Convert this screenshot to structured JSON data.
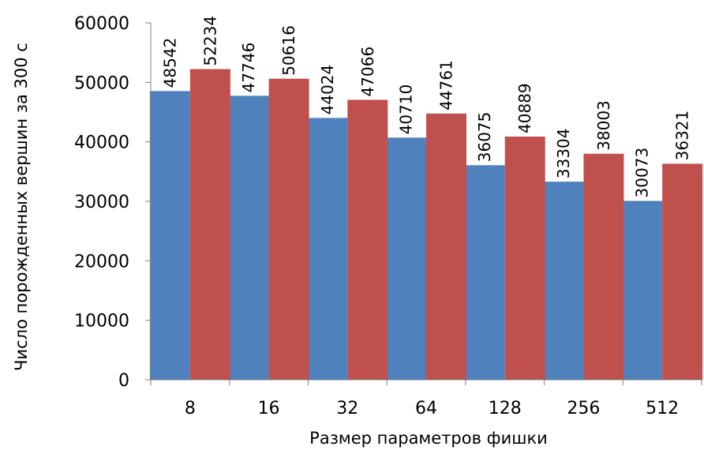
{
  "chart_data": {
    "type": "bar",
    "categories": [
      "8",
      "16",
      "32",
      "64",
      "128",
      "256",
      "512"
    ],
    "series": [
      {
        "values": [
          48542,
          47746,
          44024,
          40710,
          36075,
          33304,
          30073
        ],
        "color": "#4f81bd"
      },
      {
        "values": [
          52234,
          50616,
          47066,
          44761,
          40889,
          38003,
          36321
        ],
        "color": "#c0504d"
      }
    ],
    "title": "",
    "xlabel": "Размер параметров фишки",
    "ylabel": "Число порожденных вершин за 300 с",
    "ylim": [
      0,
      60000
    ],
    "yticks": [
      0,
      10000,
      20000,
      30000,
      40000,
      50000,
      60000
    ],
    "grid": false,
    "legend": "none"
  }
}
